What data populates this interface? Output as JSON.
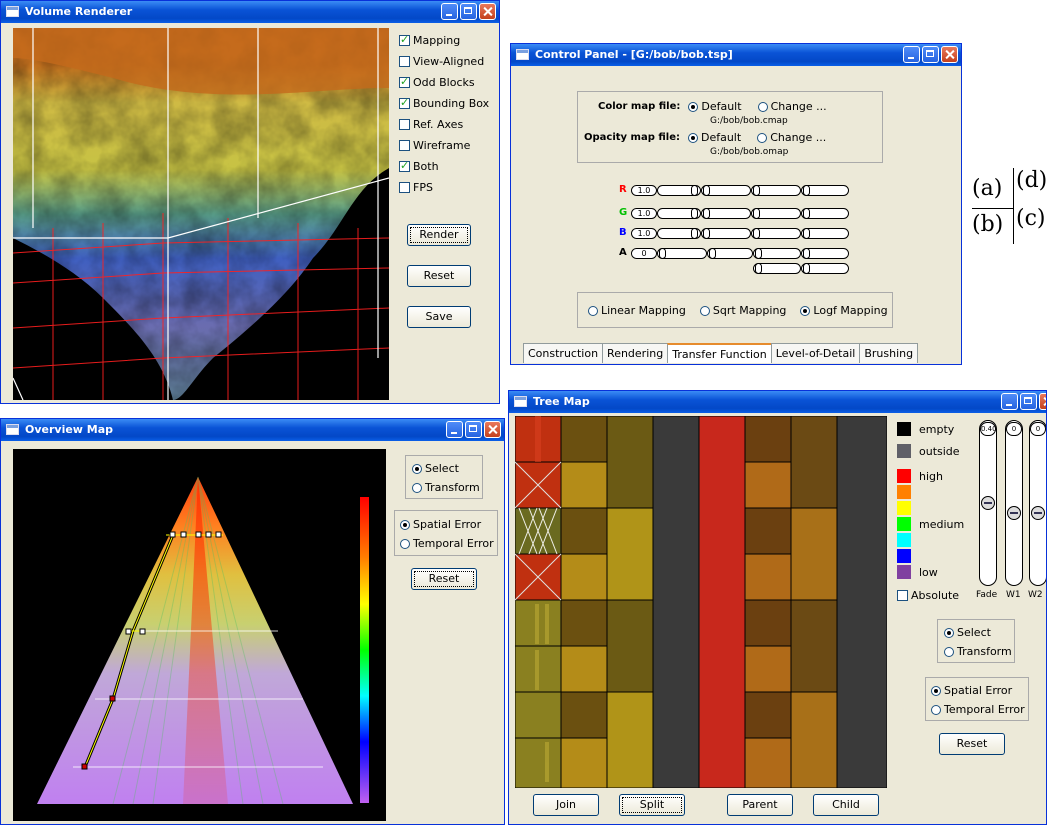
{
  "volume": {
    "title": "Volume Renderer",
    "options": [
      {
        "label": "Mapping",
        "checked": true
      },
      {
        "label": "View-Aligned",
        "checked": false
      },
      {
        "label": "Odd Blocks",
        "checked": true
      },
      {
        "label": "Bounding Box",
        "checked": true
      },
      {
        "label": "Ref. Axes",
        "checked": false
      },
      {
        "label": "Wireframe",
        "checked": false
      },
      {
        "label": "Both",
        "checked": true
      },
      {
        "label": "FPS",
        "checked": false
      }
    ],
    "render_label": "Render",
    "reset_label": "Reset",
    "save_label": "Save"
  },
  "control": {
    "title": "Control Panel - [G:/bob/bob.tsp]",
    "color_map_label": "Color map file:",
    "color_default": "Default",
    "color_change": "Change ...",
    "color_path": "G:/bob/bob.cmap",
    "opacity_map_label": "Opacity map file:",
    "opacity_default": "Default",
    "opacity_change": "Change ...",
    "opacity_path": "G:/bob/bob.omap",
    "channels": [
      {
        "label": "R",
        "color": "#ff0000",
        "value": "1.0"
      },
      {
        "label": "G",
        "color": "#00c000",
        "value": "1.0"
      },
      {
        "label": "B",
        "color": "#0000ff",
        "value": "1.0"
      },
      {
        "label": "A",
        "color": "#000000",
        "value": "0"
      }
    ],
    "mappings": [
      "Linear Mapping",
      "Sqrt  Mapping",
      "Logf  Mapping"
    ],
    "mapping_selected": 2,
    "tabs": [
      "Construction",
      "Rendering",
      "Transfer Function",
      "Level-of-Detail",
      "Brushing"
    ],
    "tab_active": 2
  },
  "figure_labels": {
    "a": "(a)",
    "b": "(b)",
    "c": "(c)",
    "d": "(d)"
  },
  "overview": {
    "title": "Overview Map",
    "select_label": "Select",
    "transform_label": "Transform",
    "spatial_label": "Spatial Error",
    "temporal_label": "Temporal Error",
    "reset_label": "Reset"
  },
  "treemap": {
    "title": "Tree Map",
    "legend": [
      {
        "label": "empty",
        "color": "#000000"
      },
      {
        "label": "outside",
        "color": "#606068"
      },
      {
        "label": "high",
        "color": "#ff0000"
      },
      {
        "label": "",
        "color": "#ff8000"
      },
      {
        "label": "",
        "color": "#ffff00"
      },
      {
        "label": "medium",
        "color": "#00ff00"
      },
      {
        "label": "",
        "color": "#00ffff"
      },
      {
        "label": "",
        "color": "#0000ff"
      },
      {
        "label": "low",
        "color": "#8040a0"
      }
    ],
    "absolute_label": "Absolute",
    "sliders": [
      {
        "label": "Fade",
        "value": "0.40"
      },
      {
        "label": "W1",
        "value": "0"
      },
      {
        "label": "W2",
        "value": "0"
      }
    ],
    "select_label": "Select",
    "transform_label": "Transform",
    "spatial_label": "Spatial Error",
    "temporal_label": "Temporal Error",
    "reset_label": "Reset",
    "join_label": "Join",
    "split_label": "Split",
    "parent_label": "Parent",
    "child_label": "Child"
  }
}
